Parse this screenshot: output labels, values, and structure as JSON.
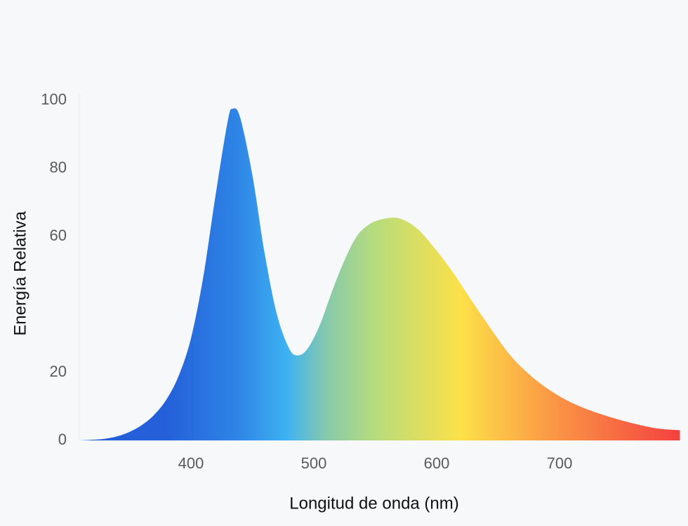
{
  "chart_data": {
    "type": "area",
    "x_label": "Longitud de onda (nm)",
    "y_label": "Energía Relativa",
    "x": [
      310,
      320,
      330,
      340,
      350,
      360,
      370,
      380,
      390,
      400,
      410,
      420,
      430,
      434,
      440,
      450,
      460,
      470,
      480,
      487,
      495,
      505,
      515,
      525,
      535,
      545,
      555,
      566,
      575,
      585,
      595,
      605,
      615,
      625,
      640,
      660,
      680,
      700,
      720,
      740,
      760,
      780,
      798
    ],
    "values": [
      0,
      0.2,
      0.5,
      1.2,
      2.5,
      4.5,
      7.5,
      12,
      19,
      30,
      48,
      72,
      94,
      97.5,
      95,
      78,
      55,
      37,
      27,
      25,
      27,
      34,
      44,
      53,
      60,
      63.5,
      65,
      65.5,
      64.5,
      62,
      58,
      53.5,
      48.5,
      43,
      35,
      25,
      18,
      13,
      9.5,
      7,
      5,
      3.5,
      3
    ],
    "xlim": [
      310,
      800
    ],
    "ylim": [
      0,
      100
    ],
    "xticks": [
      400,
      500,
      600,
      700
    ],
    "yticks": [
      0,
      20,
      60,
      80,
      100
    ],
    "color_stops": [
      {
        "x": 380,
        "color": "#2560da"
      },
      {
        "x": 440,
        "color": "#2f86e6"
      },
      {
        "x": 478,
        "color": "#3db2f2"
      },
      {
        "x": 510,
        "color": "#86c9ac"
      },
      {
        "x": 550,
        "color": "#b7dc7c"
      },
      {
        "x": 620,
        "color": "#fde048"
      },
      {
        "x": 690,
        "color": "#fb9b46"
      },
      {
        "x": 800,
        "color": "#f43f3f"
      }
    ]
  }
}
